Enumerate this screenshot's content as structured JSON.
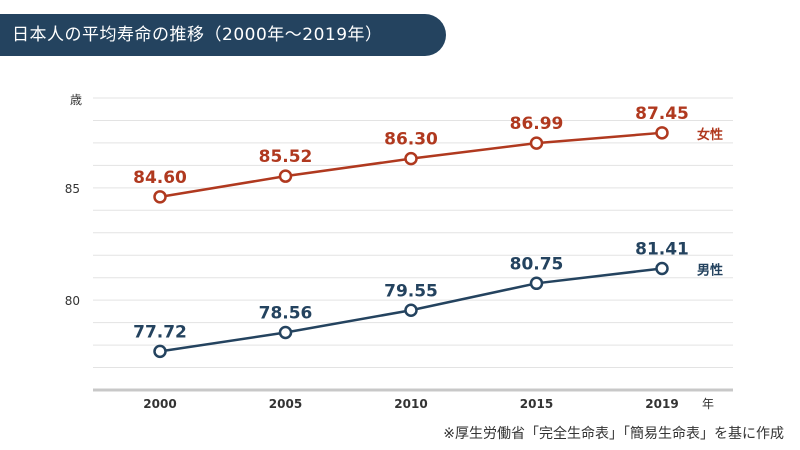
{
  "chart_data": {
    "type": "line",
    "title": "日本人の平均寿命の推移（2000年～2019年）",
    "ylabel": "歳",
    "xlabel": "年",
    "categories": [
      "2000",
      "2005",
      "2010",
      "2015",
      "2019"
    ],
    "yticks": [
      "80",
      "85"
    ],
    "ylim": [
      76,
      89
    ],
    "grid": true,
    "series": [
      {
        "name": "女性",
        "color": "#b0391f",
        "values": [
          84.6,
          85.52,
          86.3,
          86.99,
          87.45
        ],
        "labels": [
          "84.60",
          "85.52",
          "86.30",
          "86.99",
          "87.45"
        ]
      },
      {
        "name": "男性",
        "color": "#24435f",
        "values": [
          77.72,
          78.56,
          79.55,
          80.75,
          81.41
        ],
        "labels": [
          "77.72",
          "78.56",
          "79.55",
          "80.75",
          "81.41"
        ]
      }
    ],
    "source": "※厚生労働省「完全生命表」「簡易生命表」を基に作成"
  }
}
